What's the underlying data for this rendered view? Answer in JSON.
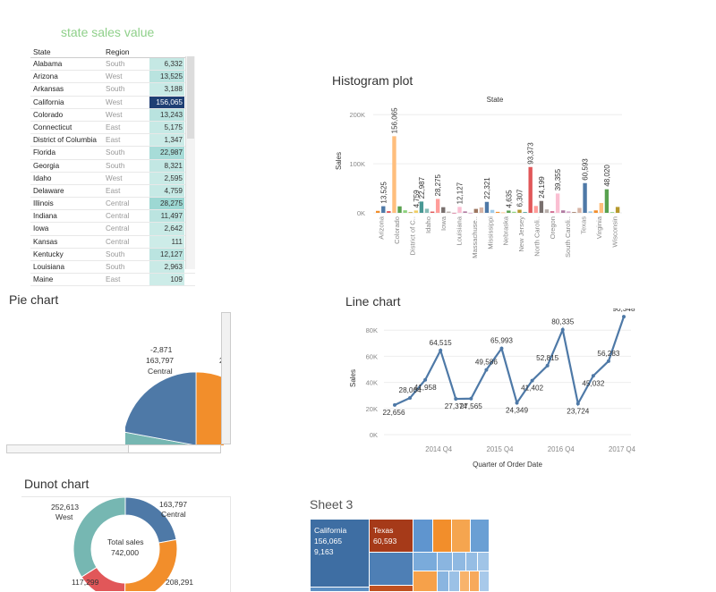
{
  "table": {
    "title": "state sales value",
    "headers": {
      "state": "State",
      "region": "Region"
    },
    "rows": [
      {
        "state": "Alabama",
        "region": "South",
        "sales": "6,332",
        "color": "#c5e8e4"
      },
      {
        "state": "Arizona",
        "region": "West",
        "sales": "13,525",
        "color": "#b9e3df"
      },
      {
        "state": "Arkansas",
        "region": "South",
        "sales": "3,188",
        "color": "#c8eae6"
      },
      {
        "state": "California",
        "region": "West",
        "sales": "156,065",
        "color": "#1f3f74",
        "text_color": "#ffffff"
      },
      {
        "state": "Colorado",
        "region": "West",
        "sales": "13,243",
        "color": "#b9e3df"
      },
      {
        "state": "Connecticut",
        "region": "East",
        "sales": "5,175",
        "color": "#c6e9e5"
      },
      {
        "state": "District of Columbia",
        "region": "East",
        "sales": "1,347",
        "color": "#cbebe7"
      },
      {
        "state": "Florida",
        "region": "South",
        "sales": "22,987",
        "color": "#a7dcd8"
      },
      {
        "state": "Georgia",
        "region": "South",
        "sales": "8,321",
        "color": "#c2e7e3"
      },
      {
        "state": "Idaho",
        "region": "West",
        "sales": "2,595",
        "color": "#c9eae6"
      },
      {
        "state": "Delaware",
        "region": "East",
        "sales": "4,759",
        "color": "#c6e9e5"
      },
      {
        "state": "Illinois",
        "region": "Central",
        "sales": "28,275",
        "color": "#9dd8d3"
      },
      {
        "state": "Indiana",
        "region": "Central",
        "sales": "11,497",
        "color": "#bbe4e0"
      },
      {
        "state": "Iowa",
        "region": "Central",
        "sales": "2,642",
        "color": "#c9eae6"
      },
      {
        "state": "Kansas",
        "region": "Central",
        "sales": "111",
        "color": "#cdece8"
      },
      {
        "state": "Kentucky",
        "region": "South",
        "sales": "12,127",
        "color": "#bae4e0"
      },
      {
        "state": "Louisiana",
        "region": "South",
        "sales": "2,963",
        "color": "#c9eae6"
      },
      {
        "state": "Maine",
        "region": "East",
        "sales": "109",
        "color": "#cdece8"
      }
    ]
  },
  "histogram": {
    "title": "Histogram plot",
    "chart_data": {
      "type": "bar",
      "header": "State",
      "ylabel": "Sales",
      "yticks": [
        "0K",
        "100K",
        "200K"
      ],
      "ylim": [
        0,
        215000
      ],
      "categories": [
        "Arizona",
        "Colorado",
        "District of C..",
        "Idaho",
        "Iowa",
        "Louisiana",
        "Massachuse..",
        "Mississippi",
        "Nebraska",
        "New Jersey",
        "North Caroli..",
        "Oregon",
        "South Caroli..",
        "Texas",
        "Virginia",
        "Wisconsin"
      ],
      "bars": [
        {
          "value": 4000,
          "color": "#f28e2b"
        },
        {
          "value": 13525,
          "color": "#4e79a7"
        },
        {
          "value": 3500,
          "color": "#e15759"
        },
        {
          "value": 156065,
          "color": "#ffbe7d"
        },
        {
          "value": 13243,
          "color": "#59a14f"
        },
        {
          "value": 5175,
          "color": "#8cd17d"
        },
        {
          "value": 1347,
          "color": "#b6992d"
        },
        {
          "value": 4759,
          "color": "#f1ce63"
        },
        {
          "value": 22987,
          "color": "#499894"
        },
        {
          "value": 8321,
          "color": "#86bcb6"
        },
        {
          "value": 2595,
          "color": "#e15759"
        },
        {
          "value": 28275,
          "color": "#ff9d9a"
        },
        {
          "value": 11497,
          "color": "#79706e"
        },
        {
          "value": 2642,
          "color": "#bab0ac"
        },
        {
          "value": 111,
          "color": "#d37295"
        },
        {
          "value": 12127,
          "color": "#fabfd2"
        },
        {
          "value": 2963,
          "color": "#b07aa1"
        },
        {
          "value": 109,
          "color": "#d4a6c8"
        },
        {
          "value": 8000,
          "color": "#9d7660"
        },
        {
          "value": 11000,
          "color": "#d7b5a6"
        },
        {
          "value": 22321,
          "color": "#4e79a7"
        },
        {
          "value": 6000,
          "color": "#a0cbe8"
        },
        {
          "value": 2000,
          "color": "#f28e2b"
        },
        {
          "value": 1000,
          "color": "#ffbe7d"
        },
        {
          "value": 4635,
          "color": "#59a14f"
        },
        {
          "value": 2200,
          "color": "#8cd17d"
        },
        {
          "value": 6307,
          "color": "#b6992d"
        },
        {
          "value": 1500,
          "color": "#499894"
        },
        {
          "value": 93373,
          "color": "#e15759"
        },
        {
          "value": 14000,
          "color": "#ff9d9a"
        },
        {
          "value": 24199,
          "color": "#79706e"
        },
        {
          "value": 7000,
          "color": "#bab0ac"
        },
        {
          "value": 3500,
          "color": "#d37295"
        },
        {
          "value": 39355,
          "color": "#fabfd2"
        },
        {
          "value": 5000,
          "color": "#b07aa1"
        },
        {
          "value": 3000,
          "color": "#d4a6c8"
        },
        {
          "value": 1500,
          "color": "#9d7660"
        },
        {
          "value": 10000,
          "color": "#d7b5a6"
        },
        {
          "value": 60593,
          "color": "#4e79a7"
        },
        {
          "value": 3000,
          "color": "#a0cbe8"
        },
        {
          "value": 5000,
          "color": "#f28e2b"
        },
        {
          "value": 20000,
          "color": "#ffbe7d"
        },
        {
          "value": 48020,
          "color": "#59a14f"
        },
        {
          "value": 1500,
          "color": "#8cd17d"
        },
        {
          "value": 12000,
          "color": "#b6992d"
        }
      ],
      "data_labels": [
        {
          "bar": 1,
          "text": "13,525"
        },
        {
          "bar": 3,
          "text": "156,065"
        },
        {
          "bar": 7,
          "text": "4,759"
        },
        {
          "bar": 8,
          "text": "22,987"
        },
        {
          "bar": 11,
          "text": "28,275"
        },
        {
          "bar": 15,
          "text": "12,127"
        },
        {
          "bar": 20,
          "text": "22,321"
        },
        {
          "bar": 24,
          "text": "4,635"
        },
        {
          "bar": 26,
          "text": "6,307"
        },
        {
          "bar": 28,
          "text": "93,373"
        },
        {
          "bar": 30,
          "text": "24,199"
        },
        {
          "bar": 33,
          "text": "39,355"
        },
        {
          "bar": 38,
          "text": "60,593"
        },
        {
          "bar": 42,
          "text": "48,020"
        }
      ]
    }
  },
  "pie": {
    "title": "Pie chart",
    "label_value": "-2,871",
    "label_total": "163,797",
    "label_region": "Central",
    "label_edge": "2",
    "chart_data": {
      "type": "pie",
      "slices": [
        {
          "name": "Central",
          "value": 163797,
          "color": "#4e79a7"
        },
        {
          "name": "East",
          "value": 208291,
          "color": "#f28e2b"
        },
        {
          "name": "South",
          "value": 117299,
          "color": "#e15759"
        },
        {
          "name": "West",
          "value": 252613,
          "color": "#76b7b2"
        }
      ]
    }
  },
  "line": {
    "title": "Line chart",
    "chart_data": {
      "type": "line",
      "ylabel": "Sales",
      "xlabel": "Quarter of Order Date",
      "yticks": [
        "0K",
        "20K",
        "40K",
        "60K",
        "80K"
      ],
      "ylim": [
        0,
        90000
      ],
      "xticks": [
        "2014 Q4",
        "2015 Q4",
        "2016 Q4",
        "2017 Q4"
      ],
      "series_color": "#4e79a7",
      "points": [
        {
          "q": "2014 Q1",
          "value": 22656,
          "label": "22,656"
        },
        {
          "q": "2014 Q2",
          "value": 28064,
          "label": "28,064"
        },
        {
          "q": "2014 Q3",
          "value": 41958,
          "label": "41,958"
        },
        {
          "q": "2014 Q4",
          "value": 64515,
          "label": "64,515"
        },
        {
          "q": "2015 Q1",
          "value": 27374,
          "label": "27,374"
        },
        {
          "q": "2015 Q2",
          "value": 27565,
          "label": "27,565"
        },
        {
          "q": "2015 Q3",
          "value": 49586,
          "label": "49,586"
        },
        {
          "q": "2015 Q4",
          "value": 65993,
          "label": "65,993"
        },
        {
          "q": "2016 Q1",
          "value": 24349,
          "label": "24,349"
        },
        {
          "q": "2016 Q2",
          "value": 41402,
          "label": "41,402"
        },
        {
          "q": "2016 Q3",
          "value": 52815,
          "label": "52,815"
        },
        {
          "q": "2016 Q4",
          "value": 80335,
          "label": "80,335"
        },
        {
          "q": "2017 Q1",
          "value": 23724,
          "label": "23,724"
        },
        {
          "q": "2017 Q2",
          "value": 45032,
          "label": "45,032"
        },
        {
          "q": "2017 Q3",
          "value": 56283,
          "label": "56,283"
        },
        {
          "q": "2017 Q4",
          "value": 90348,
          "label": "90,348"
        }
      ]
    }
  },
  "donut": {
    "title": "Dunot chart",
    "center_label": "Total sales",
    "center_value": "742,000",
    "labels": {
      "west_value": "252,613",
      "west_name": "West",
      "central_value": "163,797",
      "central_name": "Central",
      "east_value": "208,291",
      "east_name": "East",
      "south_value": "117,299",
      "south_name": "South"
    },
    "chart_data": {
      "type": "pie",
      "slices": [
        {
          "name": "Central",
          "value": 163797,
          "color": "#4e79a7"
        },
        {
          "name": "East",
          "value": 208291,
          "color": "#f28e2b"
        },
        {
          "name": "South",
          "value": 117299,
          "color": "#e15759"
        },
        {
          "name": "West",
          "value": 252613,
          "color": "#76b7b2"
        }
      ]
    }
  },
  "treemap": {
    "title": "Sheet 3",
    "california": {
      "name": "California",
      "sales": "156,065",
      "quantity": "9,163"
    },
    "texas": {
      "name": "Texas",
      "sales": "60,593"
    }
  }
}
